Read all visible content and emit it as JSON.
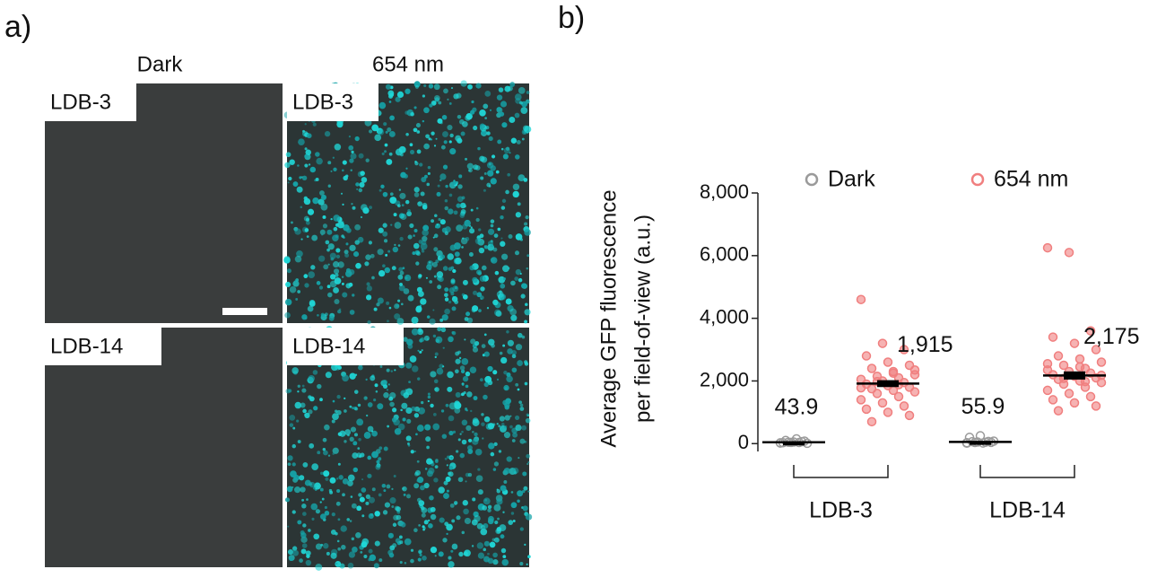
{
  "panel_labels": [
    "a)",
    "b)"
  ],
  "panel_a": {
    "columns": [
      "Dark",
      "654 nm"
    ],
    "rows": [
      "LDB-3",
      "LDB-14"
    ]
  },
  "chart_data": {
    "type": "dot",
    "ylabel": [
      "Average GFP fluorescence",
      "per field-of-view (a.u.)"
    ],
    "categories": [
      "LDB-3",
      "LDB-14"
    ],
    "ylim": [
      -250,
      8000
    ],
    "yticks": [
      0,
      {
        "value": 2000,
        "label": "2,000"
      },
      {
        "value": 4000,
        "label": "4,000"
      },
      {
        "value": 6000,
        "label": "6,000"
      },
      {
        "value": 8000,
        "label": "8,000"
      }
    ],
    "legend": "top",
    "series": [
      {
        "name": "Dark",
        "color": "#9a9a9a",
        "values": [
          43.9,
          55.9
        ],
        "value_labels": [
          "43.9",
          "55.9"
        ],
        "errors": [
          15,
          20
        ],
        "points": [
          [
            20,
            40,
            60,
            30,
            50,
            80,
            100,
            150,
            10,
            45,
            35,
            25
          ],
          [
            30,
            50,
            70,
            200,
            250,
            40,
            60,
            20,
            80,
            35,
            45,
            15
          ]
        ]
      },
      {
        "name": "654 nm",
        "color": "#f07f7f",
        "values": [
          1915,
          2175
        ],
        "value_labels": [
          "1,915",
          "2,175"
        ],
        "errors": [
          110,
          130
        ],
        "points": [
          [
            4600,
            3200,
            3000,
            2800,
            2600,
            2500,
            2400,
            2300,
            2200,
            2150,
            2100,
            2050,
            2000,
            1950,
            1900,
            1850,
            1800,
            1750,
            1700,
            1650,
            1600,
            1500,
            1400,
            1300,
            1200,
            1100,
            1000,
            900,
            700,
            2250,
            2350,
            1980,
            1880,
            1780
          ],
          [
            6250,
            6100,
            3600,
            3400,
            3200,
            3000,
            2800,
            2700,
            2600,
            2500,
            2400,
            2350,
            2300,
            2250,
            2200,
            2150,
            2100,
            2050,
            2000,
            1950,
            1900,
            1800,
            1700,
            1600,
            1500,
            1400,
            1300,
            1200,
            1050,
            2450,
            2180,
            2080,
            1980,
            2550
          ]
        ]
      }
    ]
  }
}
